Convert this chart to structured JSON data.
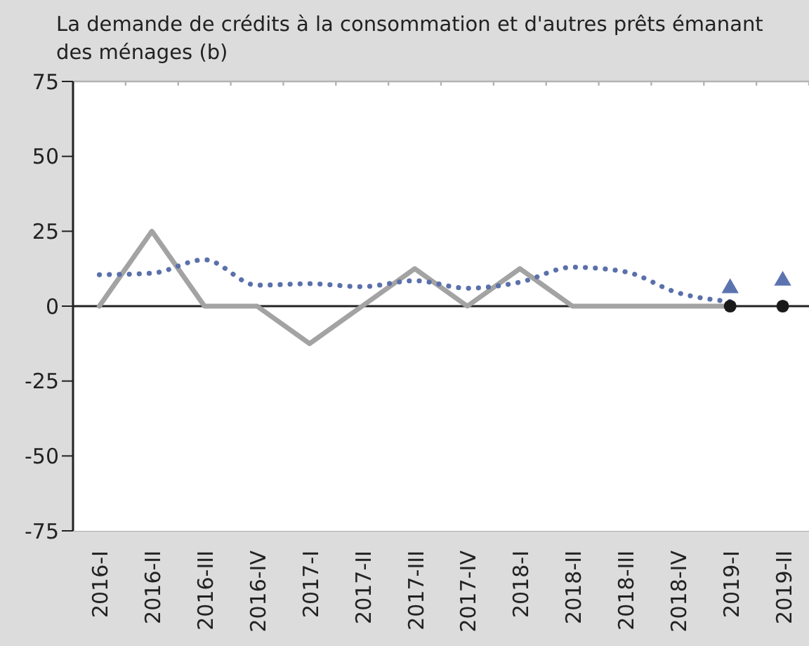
{
  "chart_data": {
    "type": "line",
    "title": "La demande de crédits à la consommation et d'autres prêts émanant des ménages (b)",
    "categories": [
      "2016-I",
      "2016-II",
      "2016-III",
      "2016-IV",
      "2017-I",
      "2017-II",
      "2017-III",
      "2017-IV",
      "2018-I",
      "2018-II",
      "2018-III",
      "2018-IV",
      "2019-I",
      "2019-II"
    ],
    "series": [
      {
        "color": "#a3a3a3",
        "line_style": "solid",
        "marker": "none",
        "values": [
          0,
          25,
          0,
          0,
          -12.5,
          0,
          12.5,
          0,
          12.5,
          0,
          0,
          0,
          0,
          null
        ]
      },
      {
        "color": "#5a70aa",
        "line_style": "dotted",
        "marker": "none",
        "values": [
          10.5,
          11,
          15.5,
          7,
          7.5,
          6.5,
          8.5,
          6,
          8,
          13,
          11.5,
          4.5,
          1.5,
          null
        ]
      },
      {
        "type": "scatter",
        "color": "#5b74b0",
        "marker": "triangle",
        "values": [
          null,
          null,
          null,
          null,
          null,
          null,
          null,
          null,
          null,
          null,
          null,
          null,
          6,
          8.5
        ]
      },
      {
        "type": "scatter",
        "color": "#1a1a1a",
        "marker": "circle",
        "values": [
          null,
          null,
          null,
          null,
          null,
          null,
          null,
          null,
          null,
          null,
          null,
          null,
          0,
          0
        ]
      }
    ],
    "ylim": [
      -75,
      75
    ],
    "yticks": [
      -75,
      -50,
      -25,
      0,
      25,
      50,
      75
    ],
    "grid": true,
    "legend": false
  }
}
